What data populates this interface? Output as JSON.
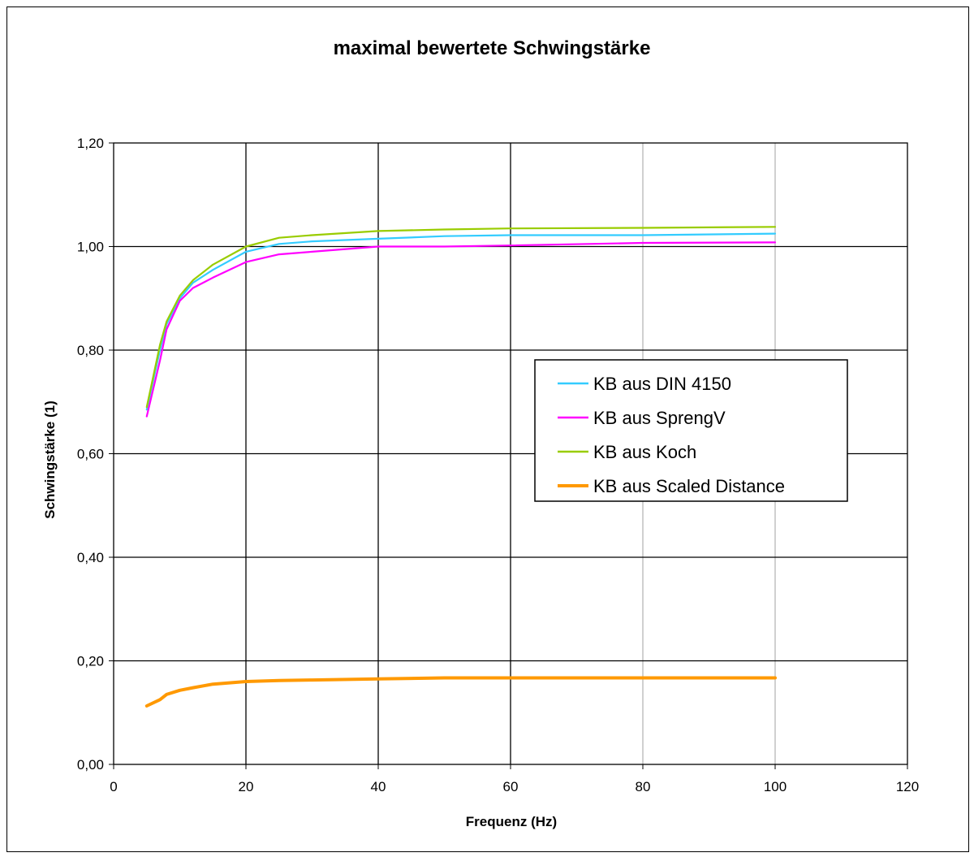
{
  "chart_data": {
    "type": "line",
    "title": "maximal bewertete Schwingstärke",
    "xlabel": "Frequenz (Hz)",
    "ylabel": "Schwingstärke (1)",
    "xlim": [
      0,
      120
    ],
    "ylim": [
      0,
      1.2
    ],
    "x_ticks": [
      "0",
      "20",
      "40",
      "60",
      "80",
      "100",
      "120"
    ],
    "y_ticks": [
      "0,00",
      "0,20",
      "0,40",
      "0,60",
      "0,80",
      "1,00",
      "1,20"
    ],
    "grid": true,
    "legend_position": "right",
    "series": [
      {
        "name": "KB aus DIN 4150",
        "color": "#33ccff",
        "x": [
          5,
          7,
          8,
          10,
          12,
          15,
          20,
          25,
          30,
          40,
          50,
          60,
          80,
          100
        ],
        "values": [
          0.685,
          0.8,
          0.85,
          0.9,
          0.93,
          0.955,
          0.99,
          1.005,
          1.01,
          1.015,
          1.02,
          1.022,
          1.022,
          1.025
        ]
      },
      {
        "name": "KB aus SprengV",
        "color": "#ff00ff",
        "x": [
          5,
          7,
          8,
          10,
          12,
          15,
          20,
          25,
          30,
          40,
          50,
          60,
          80,
          100
        ],
        "values": [
          0.672,
          0.78,
          0.84,
          0.895,
          0.92,
          0.94,
          0.97,
          0.985,
          0.99,
          1.0,
          1.0,
          1.002,
          1.007,
          1.008
        ]
      },
      {
        "name": "KB aus Koch",
        "color": "#99cc00",
        "x": [
          5,
          7,
          8,
          10,
          12,
          15,
          20,
          25,
          30,
          40,
          50,
          60,
          80,
          100
        ],
        "values": [
          0.69,
          0.81,
          0.855,
          0.905,
          0.935,
          0.965,
          1.0,
          1.017,
          1.022,
          1.03,
          1.033,
          1.035,
          1.036,
          1.038
        ]
      },
      {
        "name": "KB aus Scaled Distance",
        "color": "#ff9900",
        "x": [
          5,
          7,
          8,
          10,
          12,
          15,
          20,
          25,
          30,
          40,
          50,
          60,
          80,
          100
        ],
        "values": [
          0.113,
          0.125,
          0.135,
          0.143,
          0.148,
          0.155,
          0.16,
          0.162,
          0.163,
          0.165,
          0.167,
          0.167,
          0.167,
          0.167
        ]
      }
    ]
  }
}
